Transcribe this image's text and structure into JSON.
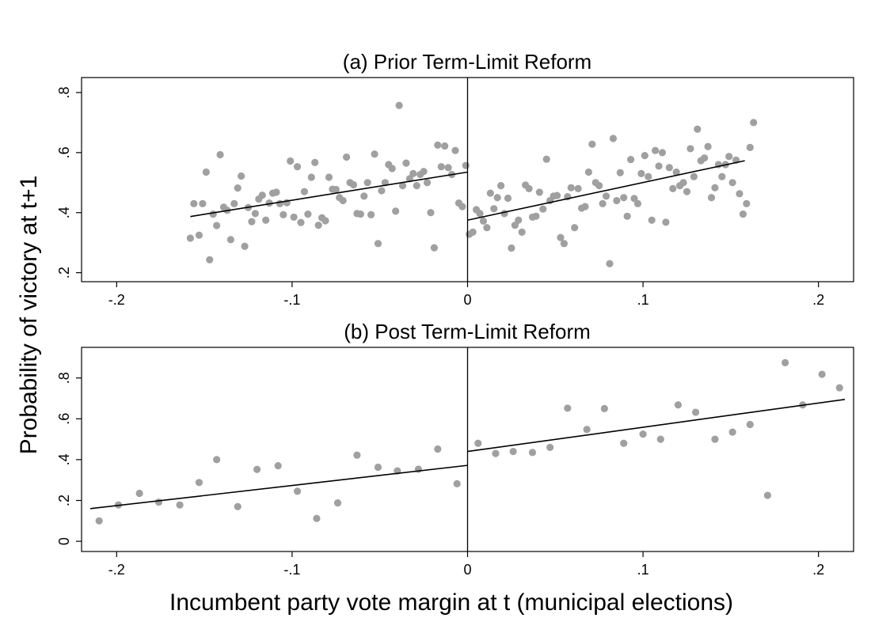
{
  "figure": {
    "ylabel": "Probability of victory at t+1",
    "xlabel": "Incumbent party vote margin at t (municipal elections)"
  },
  "chart_data": [
    {
      "type": "scatter",
      "title": "(a) Prior Term-Limit Reform",
      "xlim": [
        -0.22,
        0.22
      ],
      "ylim": [
        0.17,
        0.85
      ],
      "xticks": [
        -0.2,
        -0.1,
        0,
        0.1,
        0.2
      ],
      "xtick_labels": [
        "-.2",
        "-.1",
        "0",
        ".1",
        ".2"
      ],
      "yticks": [
        0.2,
        0.4,
        0.6,
        0.8
      ],
      "ytick_labels": [
        ".2",
        ".4",
        ".6",
        ".8"
      ],
      "threshold_line_x": 0,
      "grid": false,
      "fit_lines": [
        {
          "x": [
            -0.158,
            0
          ],
          "y": [
            0.387,
            0.535
          ]
        },
        {
          "x": [
            0,
            0.158
          ],
          "y": [
            0.375,
            0.573
          ]
        }
      ],
      "points": [
        [
          -0.158,
          0.315
        ],
        [
          -0.156,
          0.43
        ],
        [
          -0.153,
          0.325
        ],
        [
          -0.151,
          0.43
        ],
        [
          -0.149,
          0.535
        ],
        [
          -0.147,
          0.243
        ],
        [
          -0.145,
          0.395
        ],
        [
          -0.143,
          0.357
        ],
        [
          -0.141,
          0.593
        ],
        [
          -0.139,
          0.418
        ],
        [
          -0.137,
          0.408
        ],
        [
          -0.135,
          0.31
        ],
        [
          -0.133,
          0.43
        ],
        [
          -0.131,
          0.482
        ],
        [
          -0.129,
          0.522
        ],
        [
          -0.127,
          0.288
        ],
        [
          -0.125,
          0.417
        ],
        [
          -0.123,
          0.37
        ],
        [
          -0.121,
          0.397
        ],
        [
          -0.119,
          0.445
        ],
        [
          -0.117,
          0.458
        ],
        [
          -0.115,
          0.375
        ],
        [
          -0.113,
          0.432
        ],
        [
          -0.111,
          0.465
        ],
        [
          -0.109,
          0.468
        ],
        [
          -0.107,
          0.43
        ],
        [
          -0.105,
          0.393
        ],
        [
          -0.103,
          0.433
        ],
        [
          -0.101,
          0.572
        ],
        [
          -0.099,
          0.385
        ],
        [
          -0.097,
          0.553
        ],
        [
          -0.095,
          0.367
        ],
        [
          -0.093,
          0.47
        ],
        [
          -0.091,
          0.395
        ],
        [
          -0.089,
          0.518
        ],
        [
          -0.087,
          0.567
        ],
        [
          -0.085,
          0.358
        ],
        [
          -0.083,
          0.383
        ],
        [
          -0.081,
          0.373
        ],
        [
          -0.079,
          0.518
        ],
        [
          -0.077,
          0.478
        ],
        [
          -0.075,
          0.477
        ],
        [
          -0.073,
          0.45
        ],
        [
          -0.071,
          0.44
        ],
        [
          -0.069,
          0.585
        ],
        [
          -0.067,
          0.5
        ],
        [
          -0.065,
          0.493
        ],
        [
          -0.063,
          0.397
        ],
        [
          -0.061,
          0.395
        ],
        [
          -0.059,
          0.455
        ],
        [
          -0.057,
          0.5
        ],
        [
          -0.055,
          0.393
        ],
        [
          -0.053,
          0.595
        ],
        [
          -0.051,
          0.297
        ],
        [
          -0.049,
          0.473
        ],
        [
          -0.047,
          0.5
        ],
        [
          -0.045,
          0.56
        ],
        [
          -0.043,
          0.547
        ],
        [
          -0.041,
          0.405
        ],
        [
          -0.039,
          0.757
        ],
        [
          -0.037,
          0.49
        ],
        [
          -0.035,
          0.565
        ],
        [
          -0.033,
          0.513
        ],
        [
          -0.031,
          0.53
        ],
        [
          -0.029,
          0.49
        ],
        [
          -0.027,
          0.527
        ],
        [
          -0.025,
          0.537
        ],
        [
          -0.023,
          0.5
        ],
        [
          -0.021,
          0.4
        ],
        [
          -0.019,
          0.283
        ],
        [
          -0.017,
          0.625
        ],
        [
          -0.015,
          0.553
        ],
        [
          -0.013,
          0.622
        ],
        [
          -0.011,
          0.55
        ],
        [
          -0.009,
          0.527
        ],
        [
          -0.007,
          0.607
        ],
        [
          -0.005,
          0.432
        ],
        [
          -0.003,
          0.42
        ],
        [
          -0.001,
          0.557
        ],
        [
          0.001,
          0.328
        ],
        [
          0.003,
          0.335
        ],
        [
          0.005,
          0.41
        ],
        [
          0.007,
          0.397
        ],
        [
          0.009,
          0.372
        ],
        [
          0.011,
          0.35
        ],
        [
          0.013,
          0.465
        ],
        [
          0.015,
          0.413
        ],
        [
          0.017,
          0.45
        ],
        [
          0.019,
          0.49
        ],
        [
          0.021,
          0.397
        ],
        [
          0.023,
          0.448
        ],
        [
          0.025,
          0.282
        ],
        [
          0.027,
          0.358
        ],
        [
          0.029,
          0.375
        ],
        [
          0.031,
          0.335
        ],
        [
          0.033,
          0.492
        ],
        [
          0.035,
          0.48
        ],
        [
          0.037,
          0.385
        ],
        [
          0.039,
          0.388
        ],
        [
          0.041,
          0.468
        ],
        [
          0.043,
          0.412
        ],
        [
          0.045,
          0.578
        ],
        [
          0.047,
          0.44
        ],
        [
          0.049,
          0.455
        ],
        [
          0.051,
          0.457
        ],
        [
          0.053,
          0.317
        ],
        [
          0.055,
          0.297
        ],
        [
          0.057,
          0.453
        ],
        [
          0.059,
          0.483
        ],
        [
          0.061,
          0.35
        ],
        [
          0.063,
          0.48
        ],
        [
          0.065,
          0.415
        ],
        [
          0.067,
          0.42
        ],
        [
          0.069,
          0.535
        ],
        [
          0.071,
          0.628
        ],
        [
          0.073,
          0.5
        ],
        [
          0.075,
          0.49
        ],
        [
          0.077,
          0.43
        ],
        [
          0.079,
          0.455
        ],
        [
          0.081,
          0.23
        ],
        [
          0.083,
          0.647
        ],
        [
          0.085,
          0.44
        ],
        [
          0.087,
          0.533
        ],
        [
          0.089,
          0.45
        ],
        [
          0.091,
          0.388
        ],
        [
          0.093,
          0.577
        ],
        [
          0.095,
          0.447
        ],
        [
          0.097,
          0.43
        ],
        [
          0.099,
          0.53
        ],
        [
          0.101,
          0.59
        ],
        [
          0.103,
          0.52
        ],
        [
          0.105,
          0.375
        ],
        [
          0.107,
          0.607
        ],
        [
          0.109,
          0.555
        ],
        [
          0.111,
          0.6
        ],
        [
          0.113,
          0.368
        ],
        [
          0.115,
          0.55
        ],
        [
          0.117,
          0.48
        ],
        [
          0.119,
          0.535
        ],
        [
          0.121,
          0.49
        ],
        [
          0.123,
          0.5
        ],
        [
          0.125,
          0.47
        ],
        [
          0.127,
          0.613
        ],
        [
          0.129,
          0.52
        ],
        [
          0.131,
          0.678
        ],
        [
          0.133,
          0.573
        ],
        [
          0.135,
          0.582
        ],
        [
          0.137,
          0.62
        ],
        [
          0.139,
          0.45
        ],
        [
          0.141,
          0.483
        ],
        [
          0.143,
          0.56
        ],
        [
          0.145,
          0.52
        ],
        [
          0.147,
          0.56
        ],
        [
          0.149,
          0.587
        ],
        [
          0.151,
          0.5
        ],
        [
          0.153,
          0.575
        ],
        [
          0.155,
          0.463
        ],
        [
          0.157,
          0.395
        ],
        [
          0.159,
          0.43
        ],
        [
          0.161,
          0.617
        ],
        [
          0.163,
          0.7
        ]
      ]
    },
    {
      "type": "scatter",
      "title": "(b) Post Term-Limit Reform",
      "xlim": [
        -0.22,
        0.22
      ],
      "ylim": [
        -0.05,
        0.95
      ],
      "xticks": [
        -0.2,
        -0.1,
        0,
        0.1,
        0.2
      ],
      "xtick_labels": [
        "-.2",
        "-.1",
        "0",
        ".1",
        ".2"
      ],
      "yticks": [
        0,
        0.2,
        0.4,
        0.6,
        0.8
      ],
      "ytick_labels": [
        "0",
        ".2",
        ".4",
        ".6",
        ".8"
      ],
      "threshold_line_x": 0,
      "grid": false,
      "fit_lines": [
        {
          "x": [
            -0.215,
            0
          ],
          "y": [
            0.16,
            0.372
          ]
        },
        {
          "x": [
            0,
            0.215
          ],
          "y": [
            0.44,
            0.695
          ]
        }
      ],
      "points": [
        [
          -0.21,
          0.1
        ],
        [
          -0.199,
          0.178
        ],
        [
          -0.187,
          0.235
        ],
        [
          -0.176,
          0.192
        ],
        [
          -0.164,
          0.178
        ],
        [
          -0.153,
          0.288
        ],
        [
          -0.143,
          0.4
        ],
        [
          -0.131,
          0.17
        ],
        [
          -0.12,
          0.352
        ],
        [
          -0.108,
          0.37
        ],
        [
          -0.097,
          0.245
        ],
        [
          -0.086,
          0.112
        ],
        [
          -0.074,
          0.188
        ],
        [
          -0.063,
          0.422
        ],
        [
          -0.051,
          0.363
        ],
        [
          -0.04,
          0.345
        ],
        [
          -0.028,
          0.353
        ],
        [
          -0.017,
          0.452
        ],
        [
          -0.006,
          0.282
        ],
        [
          0.006,
          0.48
        ],
        [
          0.016,
          0.43
        ],
        [
          0.026,
          0.44
        ],
        [
          0.037,
          0.435
        ],
        [
          0.047,
          0.46
        ],
        [
          0.057,
          0.652
        ],
        [
          0.068,
          0.548
        ],
        [
          0.078,
          0.65
        ],
        [
          0.089,
          0.48
        ],
        [
          0.1,
          0.525
        ],
        [
          0.11,
          0.5
        ],
        [
          0.12,
          0.668
        ],
        [
          0.13,
          0.632
        ],
        [
          0.141,
          0.5
        ],
        [
          0.151,
          0.535
        ],
        [
          0.161,
          0.572
        ],
        [
          0.171,
          0.225
        ],
        [
          0.181,
          0.875
        ],
        [
          0.191,
          0.668
        ],
        [
          0.202,
          0.818
        ],
        [
          0.212,
          0.752
        ]
      ]
    }
  ]
}
